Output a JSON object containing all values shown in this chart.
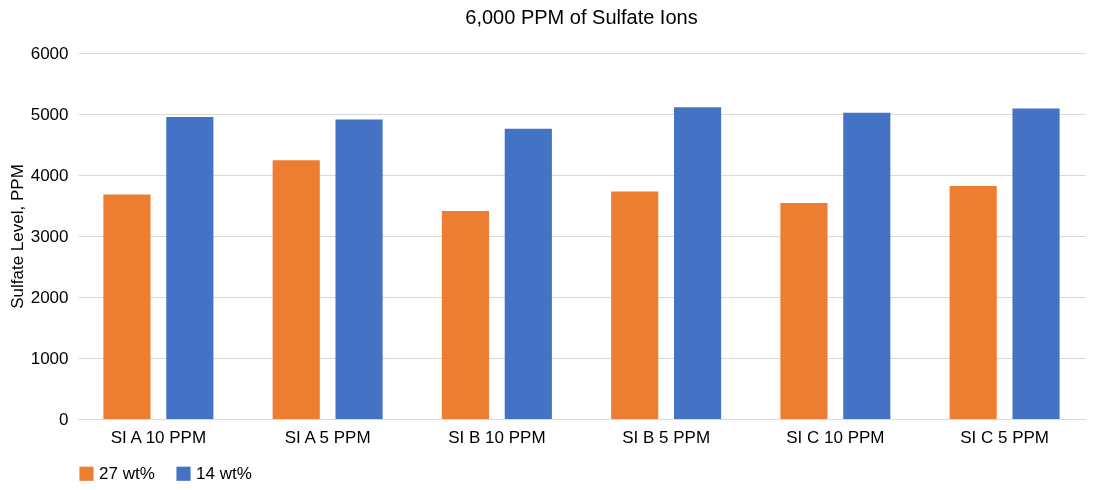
{
  "chart_data": {
    "type": "bar",
    "title": "6,000 PPM of Sulfate Ions",
    "ylabel": "Sulfate Level, PPM",
    "categories": [
      "SI A 10 PPM",
      "SI A 5 PPM",
      "SI B 10 PPM",
      "SI B 5 PPM",
      "SI C 10 PPM",
      "SI C 5 PPM"
    ],
    "series": [
      {
        "name": "27 wt%",
        "color": "#ed7d31",
        "values": [
          3680,
          4240,
          3410,
          3730,
          3540,
          3820
        ]
      },
      {
        "name": "14 wt%",
        "color": "#4472c4",
        "values": [
          4950,
          4910,
          4760,
          5110,
          5020,
          5090
        ]
      }
    ],
    "ylim": [
      0,
      6000
    ],
    "yticks": [
      0,
      1000,
      2000,
      3000,
      4000,
      5000,
      6000
    ],
    "grid": "y",
    "legend": "bottom"
  }
}
